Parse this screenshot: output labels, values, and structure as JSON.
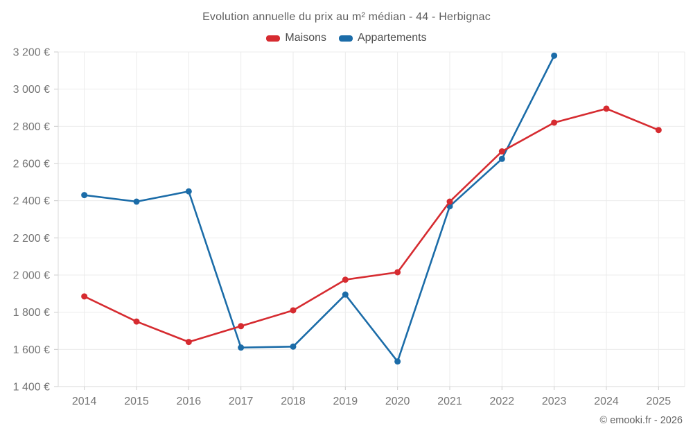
{
  "page": {
    "title": "Evolution annuelle du prix au m² médian - 44 - Herbignac",
    "footer": "© emooki.fr - 2026"
  },
  "legend": {
    "items": [
      {
        "label": "Maisons",
        "color": "#d62b30"
      },
      {
        "label": "Appartements",
        "color": "#1b6ca8"
      }
    ]
  },
  "chart_data": {
    "type": "line",
    "title": "Evolution annuelle du prix au m² médian - 44 - Herbignac",
    "categories": [
      "2014",
      "2015",
      "2016",
      "2017",
      "2018",
      "2019",
      "2020",
      "2021",
      "2022",
      "2023",
      "2024",
      "2025"
    ],
    "series": [
      {
        "name": "Maisons",
        "color": "#d62b30",
        "values": [
          1885,
          1750,
          1640,
          1725,
          1810,
          1975,
          2015,
          2395,
          2665,
          2820,
          2895,
          2780
        ]
      },
      {
        "name": "Appartements",
        "color": "#1b6ca8",
        "values": [
          2430,
          2395,
          2450,
          1610,
          1615,
          1895,
          1535,
          2370,
          2625,
          3180,
          null,
          null
        ]
      }
    ],
    "xlabel": "",
    "ylabel": "",
    "ylim": [
      1400,
      3200
    ],
    "ytick_step": 200,
    "ytick_labels": [
      "1 400 €",
      "1 600 €",
      "1 800 €",
      "2 000 €",
      "2 200 €",
      "2 400 €",
      "2 600 €",
      "2 800 €",
      "3 000 €",
      "3 200 €"
    ],
    "grid": true,
    "legend_position": "top",
    "colors": {
      "grid": "#ebebeb",
      "axis": "#d9d9d9",
      "tick": "#cccccc",
      "axis_text": "#757575"
    }
  }
}
